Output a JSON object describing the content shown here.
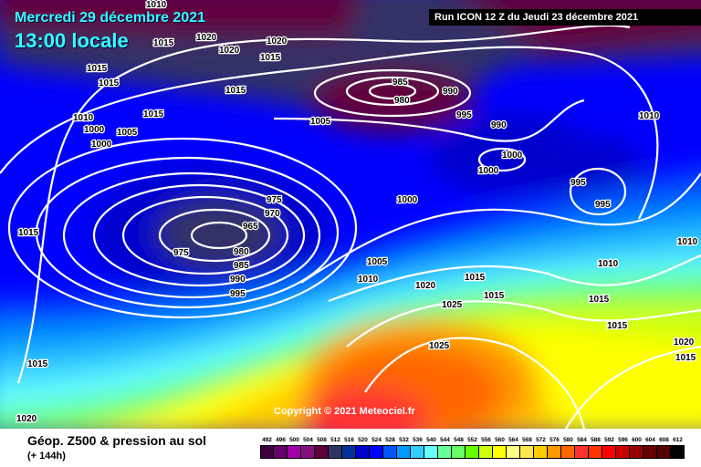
{
  "header": {
    "date": "Mercredi 29 décembre 2021",
    "time": "13:00 locale",
    "run": "Run ICON 12 Z du Jeudi 23 décembre 2021"
  },
  "copyright": "Copyright © 2021 Meteociel.fr",
  "footer": {
    "title": "Géop. Z500 & pression au sol",
    "lead": "(+ 144h)"
  },
  "legend": {
    "unit_values": [
      "492",
      "496",
      "500",
      "504",
      "508",
      "512",
      "516",
      "520",
      "524",
      "528",
      "532",
      "536",
      "540",
      "544",
      "548",
      "552",
      "556",
      "560",
      "564",
      "568",
      "572",
      "576",
      "580",
      "584",
      "588",
      "592",
      "596",
      "600",
      "604",
      "608",
      "612"
    ],
    "colors": [
      "#3f0040",
      "#66006a",
      "#a000a8",
      "#861080",
      "#62003e",
      "#303366",
      "#003399",
      "#0000cc",
      "#0000ff",
      "#0055ff",
      "#0099ff",
      "#33ccff",
      "#66ffff",
      "#66ff99",
      "#66ff66",
      "#66ff00",
      "#ccff11",
      "#ffff00",
      "#ffff80",
      "#ffe64d",
      "#ffcc00",
      "#ff9900",
      "#ff6600",
      "#ff3333",
      "#ff3300",
      "#ff0000",
      "#cc0000",
      "#990000",
      "#660000",
      "#550000",
      "#000000"
    ]
  },
  "isobar_labels": [
    "1015",
    "1010",
    "1015",
    "1020",
    "1020",
    "1015",
    "1015",
    "1015",
    "1010",
    "1000",
    "1005",
    "1000",
    "1015",
    "1005",
    "985",
    "980",
    "990",
    "995",
    "990",
    "1000",
    "1000",
    "995",
    "995",
    "1000",
    "975",
    "970",
    "965",
    "975",
    "980",
    "985",
    "990",
    "995",
    "1015",
    "1005",
    "1010",
    "1020",
    "1015",
    "1025",
    "1015",
    "1010",
    "1015",
    "1015",
    "1025",
    "1020",
    "1020",
    "1015",
    "1020",
    "1015",
    "1010",
    "1010"
  ]
}
